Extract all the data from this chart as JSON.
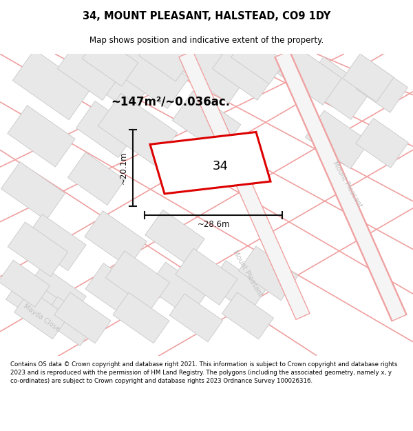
{
  "title": "34, MOUNT PLEASANT, HALSTEAD, CO9 1DY",
  "subtitle": "Map shows position and indicative extent of the property.",
  "area_label": "~147m²/~0.036ac.",
  "property_number": "34",
  "width_label": "~28.6m",
  "height_label": "~20.1m",
  "footer": "Contains OS data © Crown copyright and database right 2021. This information is subject to Crown copyright and database rights 2023 and is reproduced with the permission of HM Land Registry. The polygons (including the associated geometry, namely x, y co-ordinates) are subject to Crown copyright and database rights 2023 Ordnance Survey 100026316.",
  "bg_color": "#f7f7f7",
  "map_bg": "#f7f7f7",
  "title_color": "#000000",
  "footer_color": "#000000",
  "road_line_color": "#f0a0a0",
  "building_fc": "#e8e8e8",
  "building_ec": "#c8c8c8",
  "property_outline": "#dd0000",
  "property_fill": "#ffffff",
  "dimension_color": "#111111",
  "street_label_color": "#c0c0c0"
}
